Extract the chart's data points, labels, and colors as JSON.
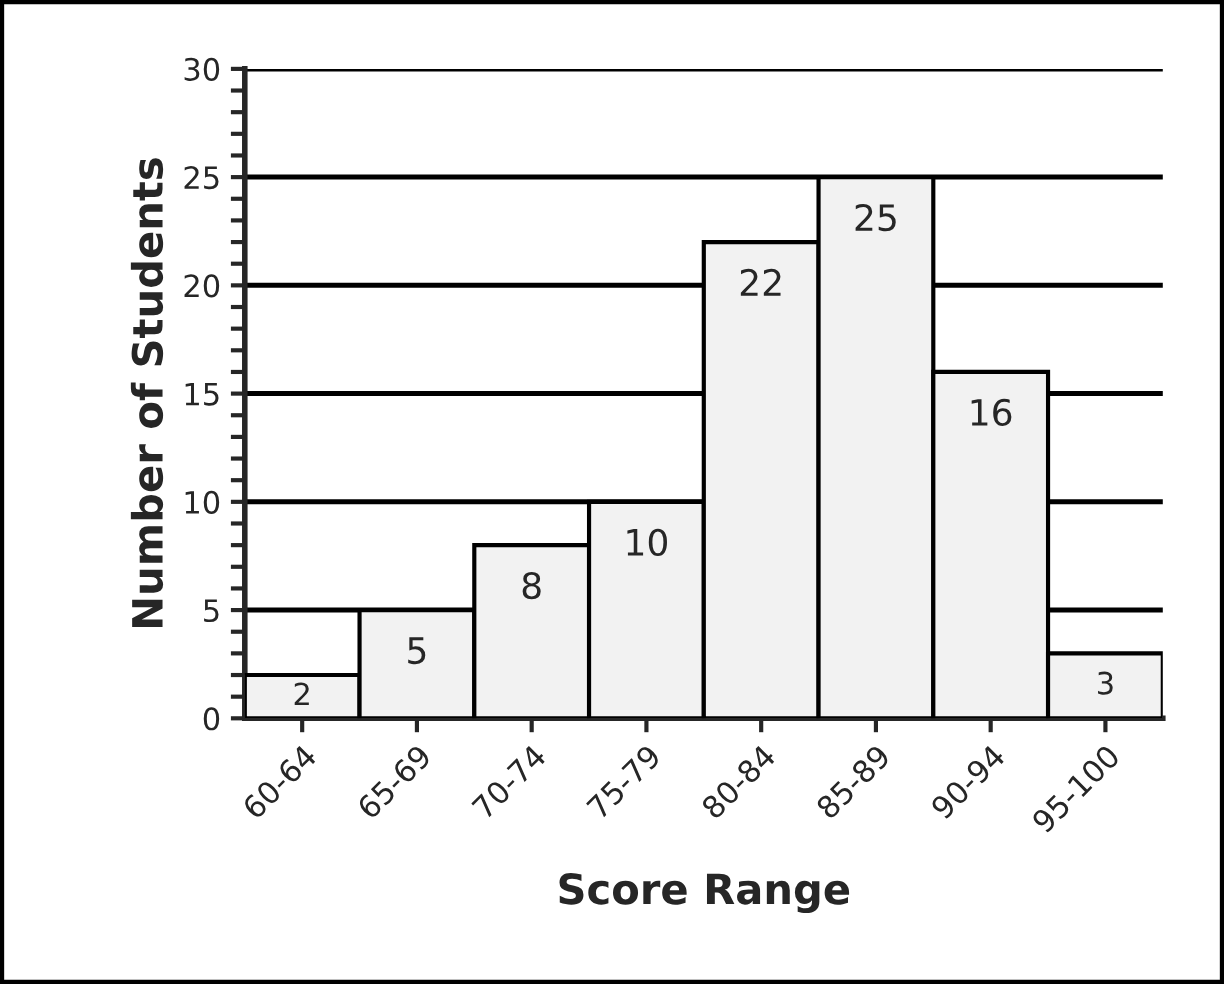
{
  "chart_data": {
    "type": "bar",
    "xlabel": "Score Range",
    "ylabel": "Number of Students",
    "categories": [
      "60-64",
      "65-69",
      "70-74",
      "75-79",
      "80-84",
      "85-89",
      "90-94",
      "95-100"
    ],
    "values": [
      2,
      5,
      8,
      10,
      22,
      25,
      16,
      3
    ],
    "color": "#f2f2f2",
    "data_labels": true,
    "ylim": [
      0,
      30
    ],
    "yticks": [
      0,
      {
        "value": 1,
        "label": null
      },
      {
        "value": 2,
        "label": null
      },
      {
        "value": 3,
        "label": null
      },
      {
        "value": 4,
        "label": null
      },
      5,
      {
        "value": 6,
        "label": null
      },
      {
        "value": 7,
        "label": null
      },
      {
        "value": 8,
        "label": null
      },
      {
        "value": 9,
        "label": null
      },
      10,
      {
        "value": 11,
        "label": null
      },
      {
        "value": 12,
        "label": null
      },
      {
        "value": 13,
        "label": null
      },
      {
        "value": 14,
        "label": null
      },
      15,
      {
        "value": 16,
        "label": null
      },
      {
        "value": 17,
        "label": null
      },
      {
        "value": 18,
        "label": null
      },
      {
        "value": 19,
        "label": null
      },
      20,
      {
        "value": 21,
        "label": null
      },
      {
        "value": 22,
        "label": null
      },
      {
        "value": 23,
        "label": null
      },
      {
        "value": 24,
        "label": null
      },
      25,
      {
        "value": 26,
        "label": null
      },
      {
        "value": 27,
        "label": null
      },
      {
        "value": 28,
        "label": null
      },
      {
        "value": 29,
        "label": null
      },
      30
    ],
    "grid": "y"
  }
}
